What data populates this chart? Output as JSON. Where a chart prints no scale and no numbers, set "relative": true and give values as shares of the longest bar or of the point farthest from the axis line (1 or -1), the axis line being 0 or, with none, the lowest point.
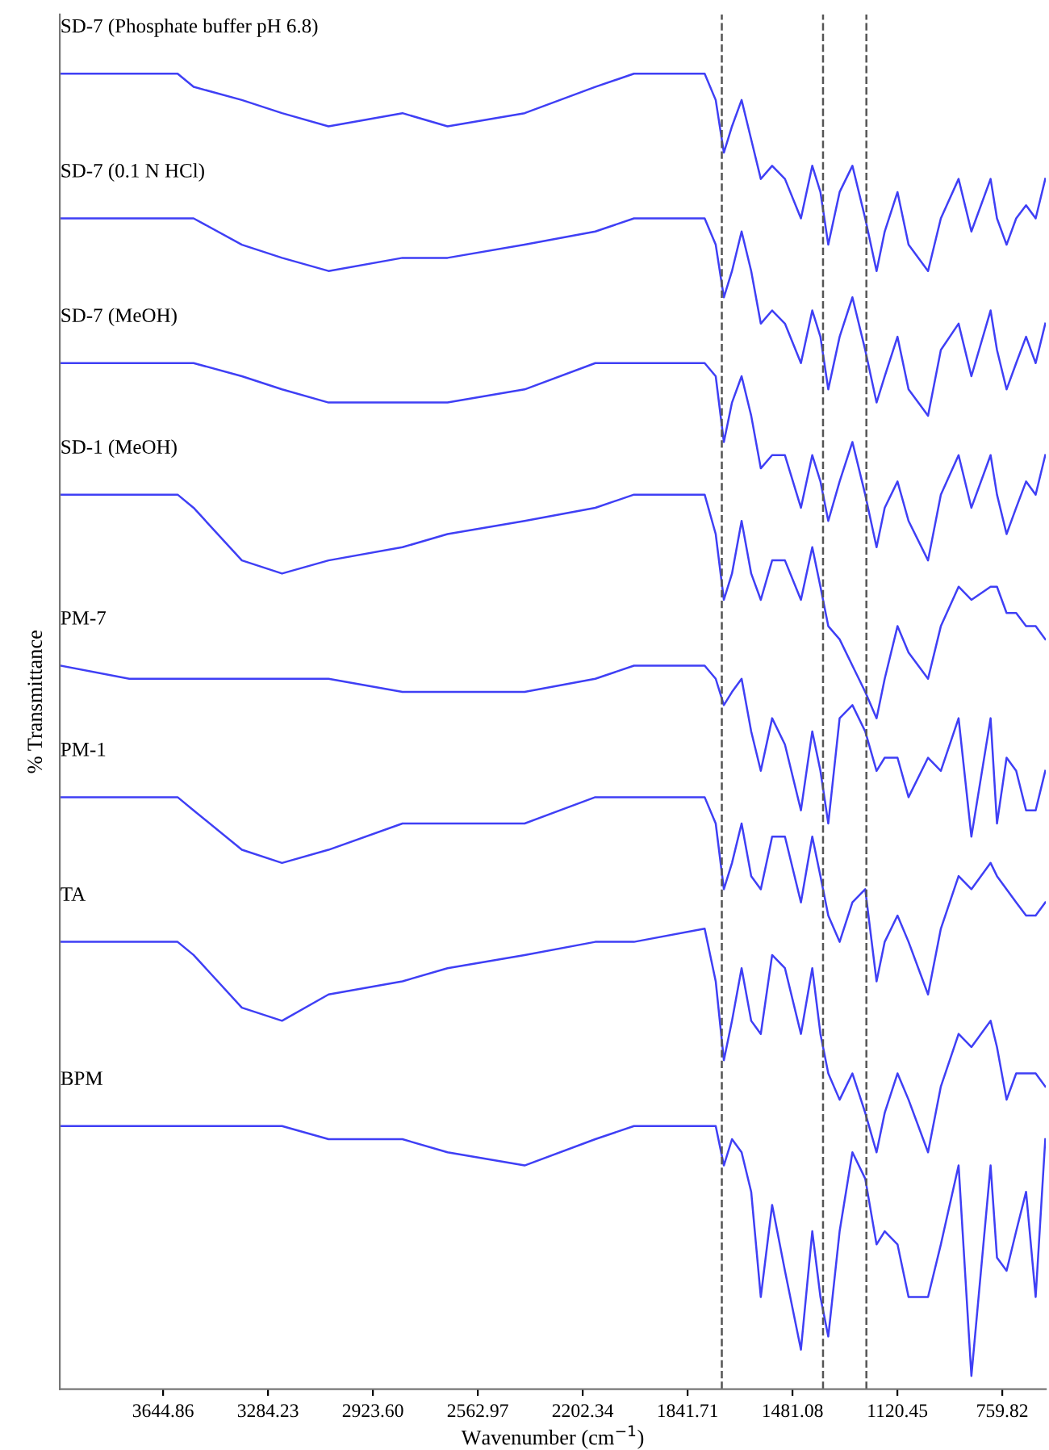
{
  "chart_data": {
    "type": "line",
    "relative": true,
    "xlabel": "Wavenumber (cm$^{−1}$)",
    "ylabel": "% Transmittance",
    "xlim": [
      4000,
      610
    ],
    "xticks": [
      3644.86,
      3284.23,
      {
        "value": 2923.6,
        "label": "2923.60"
      },
      2562.97,
      2202.34,
      1841.71,
      1481.08,
      1120.45,
      759.82
    ],
    "tick_labels": "x",
    "grid": false,
    "legend": false,
    "marker": "none",
    "line_style": "solid",
    "x": [
      3998,
      3761,
      3595,
      3540,
      3374,
      3236,
      3076,
      2822,
      2667,
      2402,
      2159,
      2026,
      1783,
      1745,
      1717,
      1689,
      1656,
      1623,
      1590,
      1551,
      1507,
      1452,
      1413,
      1385,
      1358,
      1319,
      1275,
      1231,
      1192,
      1164,
      1120,
      1082,
      1015,
      971,
      910,
      866,
      800,
      778,
      745,
      712,
      678,
      645,
      612
    ],
    "series": [
      {
        "name": "SD-7 (Phosphate buffer pH 6.8)",
        "color": "#3f3ff5",
        "values": [
          1.0,
          1.0,
          1.0,
          0.99,
          0.98,
          0.97,
          0.96,
          0.97,
          0.96,
          0.97,
          0.99,
          1.0,
          1.0,
          0.98,
          0.94,
          0.96,
          0.98,
          0.95,
          0.92,
          0.93,
          0.92,
          0.89,
          0.93,
          0.91,
          0.87,
          0.91,
          0.93,
          0.89,
          0.85,
          0.88,
          0.91,
          0.87,
          0.85,
          0.89,
          0.92,
          0.88,
          0.92,
          0.89,
          0.87,
          0.89,
          0.9,
          0.89,
          0.92
        ]
      },
      {
        "name": "SD-7 (0.1 N HCl)",
        "color": "#3f3ff5",
        "values": [
          0.89,
          0.89,
          0.89,
          0.89,
          0.87,
          0.86,
          0.85,
          0.86,
          0.86,
          0.87,
          0.88,
          0.89,
          0.89,
          0.87,
          0.83,
          0.85,
          0.88,
          0.85,
          0.81,
          0.82,
          0.81,
          0.78,
          0.82,
          0.8,
          0.76,
          0.8,
          0.83,
          0.79,
          0.75,
          0.77,
          0.8,
          0.76,
          0.74,
          0.79,
          0.81,
          0.77,
          0.82,
          0.79,
          0.76,
          0.78,
          0.8,
          0.78,
          0.81
        ]
      },
      {
        "name": "SD-7 (MeOH)",
        "color": "#3f3ff5",
        "values": [
          0.78,
          0.78,
          0.78,
          0.78,
          0.77,
          0.76,
          0.75,
          0.75,
          0.75,
          0.76,
          0.78,
          0.78,
          0.78,
          0.77,
          0.72,
          0.75,
          0.77,
          0.74,
          0.7,
          0.71,
          0.71,
          0.67,
          0.71,
          0.69,
          0.66,
          0.69,
          0.72,
          0.68,
          0.64,
          0.67,
          0.69,
          0.66,
          0.63,
          0.68,
          0.71,
          0.67,
          0.71,
          0.68,
          0.65,
          0.67,
          0.69,
          0.68,
          0.71
        ]
      },
      {
        "name": "SD-1 (MeOH)",
        "color": "#3f3ff5",
        "values": [
          0.68,
          0.68,
          0.68,
          0.67,
          0.63,
          0.62,
          0.63,
          0.64,
          0.65,
          0.66,
          0.67,
          0.68,
          0.68,
          0.65,
          0.6,
          0.62,
          0.66,
          0.62,
          0.6,
          0.63,
          0.63,
          0.6,
          0.64,
          0.61,
          0.58,
          0.57,
          0.55,
          0.53,
          0.51,
          0.54,
          0.58,
          0.56,
          0.54,
          0.58,
          0.61,
          0.6,
          0.61,
          0.61,
          0.59,
          0.59,
          0.58,
          0.58,
          0.57
        ]
      },
      {
        "name": "PM-7",
        "color": "#3f3ff5",
        "values": [
          0.55,
          0.54,
          0.54,
          0.54,
          0.54,
          0.54,
          0.54,
          0.53,
          0.53,
          0.53,
          0.54,
          0.55,
          0.55,
          0.54,
          0.52,
          0.53,
          0.54,
          0.5,
          0.47,
          0.51,
          0.49,
          0.44,
          0.5,
          0.47,
          0.43,
          0.51,
          0.52,
          0.5,
          0.47,
          0.48,
          0.48,
          0.45,
          0.48,
          0.47,
          0.51,
          0.42,
          0.51,
          0.43,
          0.48,
          0.47,
          0.44,
          0.44,
          0.47
        ]
      },
      {
        "name": "PM-1",
        "color": "#3f3ff5",
        "values": [
          0.45,
          0.45,
          0.45,
          0.44,
          0.41,
          0.4,
          0.41,
          0.43,
          0.43,
          0.43,
          0.45,
          0.45,
          0.45,
          0.43,
          0.38,
          0.4,
          0.43,
          0.39,
          0.38,
          0.42,
          0.42,
          0.37,
          0.42,
          0.39,
          0.36,
          0.34,
          0.37,
          0.38,
          0.31,
          0.34,
          0.36,
          0.34,
          0.3,
          0.35,
          0.39,
          0.38,
          0.4,
          0.39,
          0.38,
          0.37,
          0.36,
          0.36,
          0.37
        ]
      },
      {
        "name": "TA",
        "color": "#3f3ff5",
        "values": [
          0.34,
          0.34,
          0.34,
          0.33,
          0.29,
          0.28,
          0.3,
          0.31,
          0.32,
          0.33,
          0.34,
          0.34,
          0.35,
          0.31,
          0.25,
          0.28,
          0.32,
          0.28,
          0.27,
          0.33,
          0.32,
          0.27,
          0.32,
          0.27,
          0.24,
          0.22,
          0.24,
          0.21,
          0.18,
          0.21,
          0.24,
          0.22,
          0.18,
          0.23,
          0.27,
          0.26,
          0.28,
          0.26,
          0.22,
          0.24,
          0.24,
          0.24,
          0.23
        ]
      },
      {
        "name": "BPM",
        "color": "#3f3ff5",
        "values": [
          0.2,
          0.2,
          0.2,
          0.2,
          0.2,
          0.2,
          0.19,
          0.19,
          0.18,
          0.17,
          0.19,
          0.2,
          0.2,
          0.2,
          0.17,
          0.19,
          0.18,
          0.15,
          0.07,
          0.14,
          0.09,
          0.03,
          0.12,
          0.07,
          0.04,
          0.12,
          0.18,
          0.16,
          0.11,
          0.12,
          0.11,
          0.07,
          0.07,
          0.11,
          0.17,
          0.01,
          0.17,
          0.1,
          0.09,
          0.12,
          0.15,
          0.07,
          0.19
        ]
      }
    ],
    "ref_lines": [
      {
        "axis": "x",
        "value": 1724,
        "color": "#555555",
        "line_style": "dashed"
      },
      {
        "axis": "x",
        "value": 1376,
        "color": "#555555",
        "line_style": "dashed"
      },
      {
        "axis": "x",
        "value": 1227,
        "color": "#555555",
        "line_style": "dashed"
      }
    ]
  }
}
